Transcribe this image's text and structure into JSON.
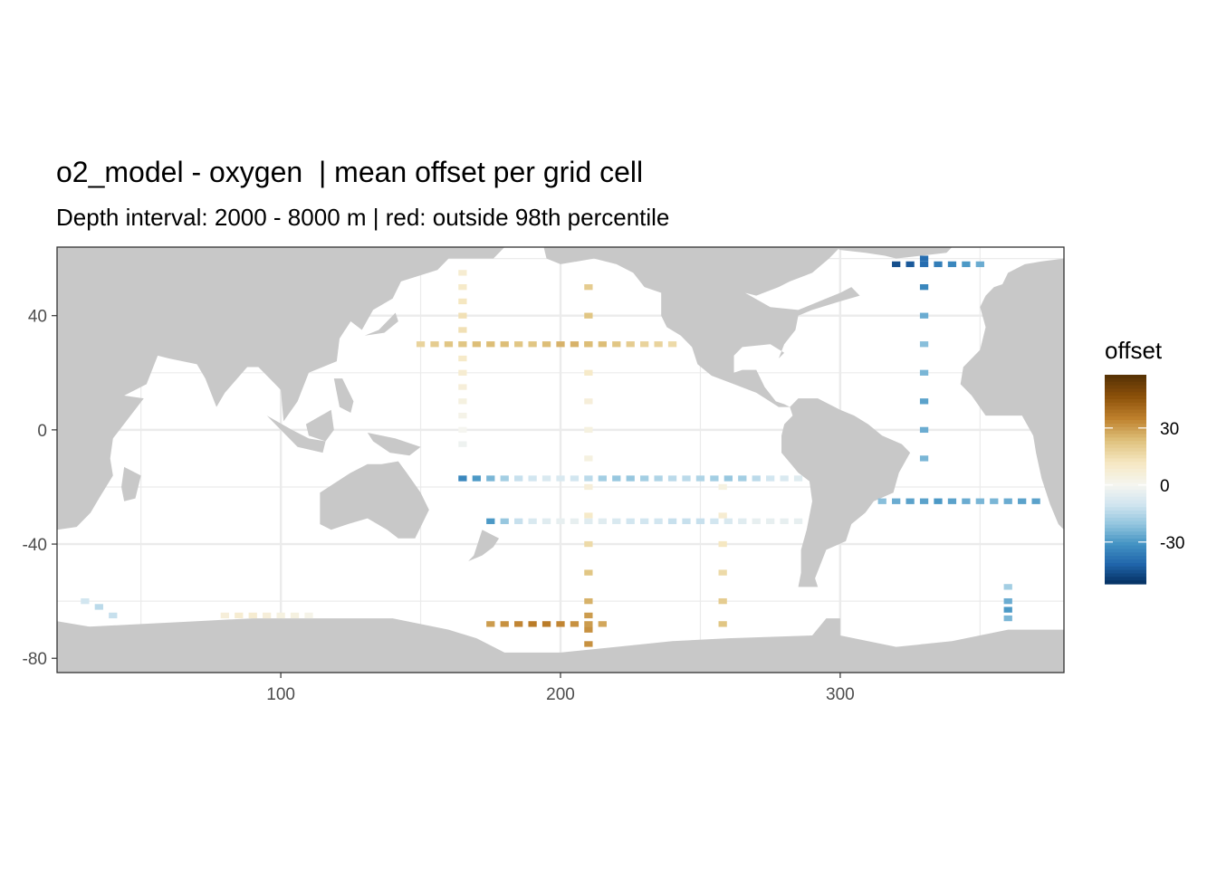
{
  "chart_data": {
    "type": "heatmap",
    "title": "o2_model - oxygen  | mean offset per grid cell",
    "subtitle": "Depth interval: 2000 - 8000 m | red: outside 98th percentile",
    "xlabel": "",
    "ylabel": "",
    "xlim": [
      20,
      380
    ],
    "ylim": [
      -85,
      64
    ],
    "x_ticks": [
      100,
      200,
      300
    ],
    "y_ticks": [
      40,
      0,
      -40,
      -80
    ],
    "grid": true,
    "colors": {
      "land": "#c8c8c8",
      "ocean": "#ffffff",
      "outlier": "#e00000",
      "panel_border": "#333333",
      "gridline": "#ebebeb"
    },
    "legend": {
      "title": "offset",
      "placement": "right",
      "range": [
        -52,
        58
      ],
      "ticks": [
        30,
        0,
        -30
      ],
      "colors": [
        "#053061",
        "#2166ac",
        "#4393c3",
        "#92c5de",
        "#d1e5f0",
        "#f5f5f0",
        "#f6e8c3",
        "#dfc27d",
        "#bf812d",
        "#8c510a",
        "#543005"
      ]
    },
    "series": [
      {
        "x": [
          165,
          165,
          165,
          165,
          165,
          165,
          165,
          165,
          165,
          165,
          165,
          165,
          165
        ],
        "y": [
          55,
          50,
          45,
          40,
          35,
          30,
          25,
          20,
          15,
          10,
          5,
          0,
          -5
        ],
        "values": [
          8,
          10,
          12,
          14,
          14,
          12,
          10,
          8,
          6,
          4,
          2,
          0,
          -2
        ]
      },
      {
        "x": [
          150,
          155,
          160,
          165,
          170,
          175,
          180,
          185,
          190,
          195,
          200,
          205,
          210,
          215,
          220,
          225,
          230,
          235,
          240
        ],
        "y": [
          30,
          30,
          30,
          30,
          30,
          30,
          30,
          30,
          30,
          30,
          30,
          30,
          30,
          30,
          30,
          30,
          30,
          30,
          30
        ],
        "values": [
          18,
          20,
          22,
          22,
          24,
          24,
          24,
          22,
          22,
          24,
          26,
          26,
          26,
          24,
          22,
          20,
          18,
          18,
          16
        ]
      },
      {
        "x": [
          210,
          210,
          210,
          210,
          210,
          210,
          210,
          210,
          210,
          210,
          210,
          210,
          210,
          210,
          210
        ],
        "y": [
          50,
          40,
          30,
          20,
          10,
          0,
          -10,
          -20,
          -30,
          -40,
          -50,
          -60,
          -65,
          -70,
          -75
        ],
        "values": [
          20,
          22,
          24,
          10,
          6,
          4,
          4,
          6,
          10,
          16,
          22,
          26,
          30,
          32,
          32
        ]
      },
      {
        "x": [
          175,
          180,
          185,
          190,
          195,
          200,
          205,
          210,
          215
        ],
        "y": [
          -68,
          -68,
          -68,
          -68,
          -68,
          -68,
          -68,
          -68,
          -68
        ],
        "values": [
          30,
          32,
          34,
          36,
          36,
          34,
          32,
          30,
          28
        ]
      },
      {
        "x": [
          258,
          258,
          258,
          258,
          258,
          258
        ],
        "y": [
          -20,
          -30,
          -40,
          -50,
          -60,
          -68
        ],
        "values": [
          4,
          8,
          12,
          16,
          20,
          22
        ]
      },
      {
        "x": [
          175,
          180,
          185,
          190,
          195,
          200,
          205,
          210,
          215,
          220,
          225,
          230,
          235,
          240,
          245,
          250,
          255,
          260,
          265,
          270,
          275,
          280,
          285
        ],
        "y": [
          -32,
          -32,
          -32,
          -32,
          -32,
          -32,
          -32,
          -32,
          -32,
          -32,
          -32,
          -32,
          -32,
          -32,
          -32,
          -32,
          -32,
          -32,
          -32,
          -32,
          -32,
          -32,
          -32
        ],
        "values": [
          -30,
          -20,
          -12,
          -8,
          -6,
          -4,
          -4,
          -6,
          -6,
          -8,
          -10,
          -10,
          -10,
          -12,
          -12,
          -12,
          -10,
          -8,
          -6,
          -4,
          -4,
          -4,
          -4
        ]
      },
      {
        "x": [
          165,
          170,
          175,
          180,
          185,
          190,
          195,
          200,
          205,
          210,
          215,
          220,
          225,
          230,
          235,
          240,
          245,
          250,
          255,
          260,
          265,
          270,
          275,
          280,
          285
        ],
        "y": [
          -17,
          -17,
          -17,
          -17,
          -17,
          -17,
          -17,
          -17,
          -17,
          -17,
          -17,
          -17,
          -17,
          -17,
          -17,
          -17,
          -17,
          -17,
          -17,
          -17,
          -17,
          -17,
          -17,
          -17,
          -17
        ],
        "values": [
          -34,
          -30,
          -24,
          -18,
          -12,
          -10,
          -8,
          -8,
          -10,
          -14,
          -18,
          -20,
          -20,
          -18,
          -16,
          -14,
          -14,
          -16,
          -18,
          -20,
          -18,
          -14,
          -10,
          -8,
          -6
        ]
      },
      {
        "x": [
          315,
          320,
          325,
          330,
          335,
          340,
          345,
          350,
          355,
          360,
          365,
          370
        ],
        "y": [
          -25,
          -25,
          -25,
          -25,
          -25,
          -25,
          -25,
          -25,
          -25,
          -25,
          -25,
          -25
        ],
        "values": [
          -22,
          -26,
          -28,
          -28,
          -30,
          -28,
          -26,
          -24,
          -24,
          -26,
          -28,
          -28
        ]
      },
      {
        "x": [
          330,
          330,
          330,
          330,
          330,
          330,
          330,
          330
        ],
        "y": [
          60,
          50,
          40,
          30,
          20,
          10,
          0,
          -10
        ],
        "values": [
          -40,
          -34,
          -26,
          -22,
          -24,
          -28,
          -26,
          -24
        ]
      },
      {
        "x": [
          320,
          325,
          330,
          335,
          340,
          345,
          350
        ],
        "y": [
          58,
          58,
          58,
          58,
          58,
          58,
          58
        ],
        "values": [
          -46,
          -44,
          -40,
          -36,
          -34,
          -30,
          -26
        ]
      },
      {
        "x": [
          360,
          360,
          360,
          360
        ],
        "y": [
          -55,
          -60,
          -63,
          -66
        ],
        "values": [
          -18,
          -26,
          -30,
          -24
        ]
      },
      {
        "x": [
          80,
          85,
          90,
          95,
          100,
          105,
          110
        ],
        "y": [
          -65,
          -65,
          -65,
          -65,
          -65,
          -65,
          -65
        ],
        "values": [
          6,
          8,
          8,
          6,
          4,
          4,
          2
        ]
      },
      {
        "x": [
          30,
          35,
          40
        ],
        "y": [
          -60,
          -62,
          -65
        ],
        "values": [
          -10,
          -14,
          -12
        ]
      }
    ]
  }
}
